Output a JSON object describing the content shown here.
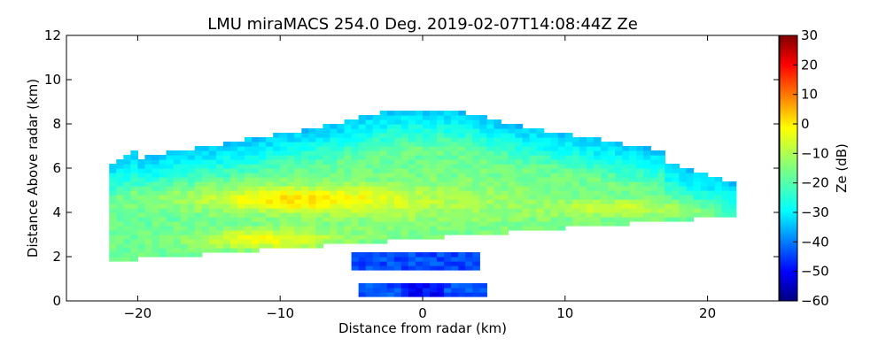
{
  "chart_data": {
    "type": "heatmap",
    "title": "LMU miraMACS 254.0 Deg. 2019-02-07T14:08:44Z  Ze",
    "xlabel": "Distance from radar (km)",
    "ylabel": "Distance Above radar  (km)",
    "xlim": [
      -25,
      25
    ],
    "ylim": [
      0,
      12
    ],
    "xticks": [
      -20,
      -10,
      0,
      10,
      20
    ],
    "xtick_labels": [
      "−20",
      "−10",
      "0",
      "10",
      "20"
    ],
    "yticks": [
      0,
      2,
      4,
      6,
      8,
      10,
      12
    ],
    "ytick_labels": [
      "0",
      "2",
      "4",
      "6",
      "8",
      "10",
      "12"
    ],
    "colorbar": {
      "label": "Ze (dB)",
      "range": [
        -60,
        30
      ],
      "ticks": [
        30,
        20,
        10,
        0,
        -10,
        -20,
        -30,
        -40,
        -50,
        -60
      ],
      "tick_labels": [
        "30",
        "20",
        "10",
        "0",
        "−10",
        "−20",
        "−30",
        "−40",
        "−50",
        "−60"
      ],
      "colormap": "jet"
    },
    "scan_elevation_deg": 254.0,
    "echo_regions": [
      {
        "region": "main-cloud-body",
        "x_range_km": [
          -22,
          22
        ],
        "z_range_km": [
          1.8,
          8.7
        ],
        "typical_ze_dB": -15
      },
      {
        "region": "enhanced-layer-upper",
        "x_range_km": [
          -15,
          1
        ],
        "z_range_km": [
          4.0,
          5.2
        ],
        "typical_ze_dB": -2
      },
      {
        "region": "enhanced-layer-lower",
        "x_range_km": [
          -15,
          -2
        ],
        "z_range_km": [
          2.3,
          3.3
        ],
        "typical_ze_dB": -3
      },
      {
        "region": "enhanced-patch-right",
        "x_range_km": [
          10,
          18
        ],
        "z_range_km": [
          3.9,
          4.5
        ],
        "typical_ze_dB": -7
      },
      {
        "region": "cloud-top-fringe",
        "x_range_km": [
          -21,
          17
        ],
        "z_range_km": [
          6.5,
          8.7
        ],
        "typical_ze_dB": -30
      },
      {
        "region": "low-weak-echo",
        "x_range_km": [
          -5,
          4
        ],
        "z_range_km": [
          0.3,
          2.3
        ],
        "typical_ze_dB": -45
      }
    ]
  }
}
